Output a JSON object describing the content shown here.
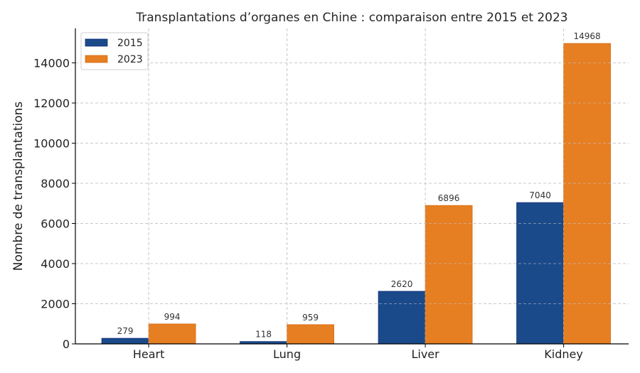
{
  "chart_data": {
    "type": "bar",
    "title": "Transplantations d’organes en Chine : comparaison entre 2015 et 2023",
    "xlabel": "",
    "ylabel": "Nombre de transplantations",
    "categories": [
      "Heart",
      "Lung",
      "Liver",
      "Kidney"
    ],
    "series": [
      {
        "name": "2015",
        "color": "#1a4a8a",
        "values": [
          279,
          118,
          2620,
          7040
        ]
      },
      {
        "name": "2023",
        "color": "#e67e22",
        "values": [
          994,
          959,
          6896,
          14968
        ]
      }
    ],
    "ylim": [
      0,
      15716
    ],
    "yticks": [
      0,
      2000,
      4000,
      6000,
      8000,
      10000,
      12000,
      14000
    ],
    "grid": true,
    "legend_position": "upper left"
  }
}
